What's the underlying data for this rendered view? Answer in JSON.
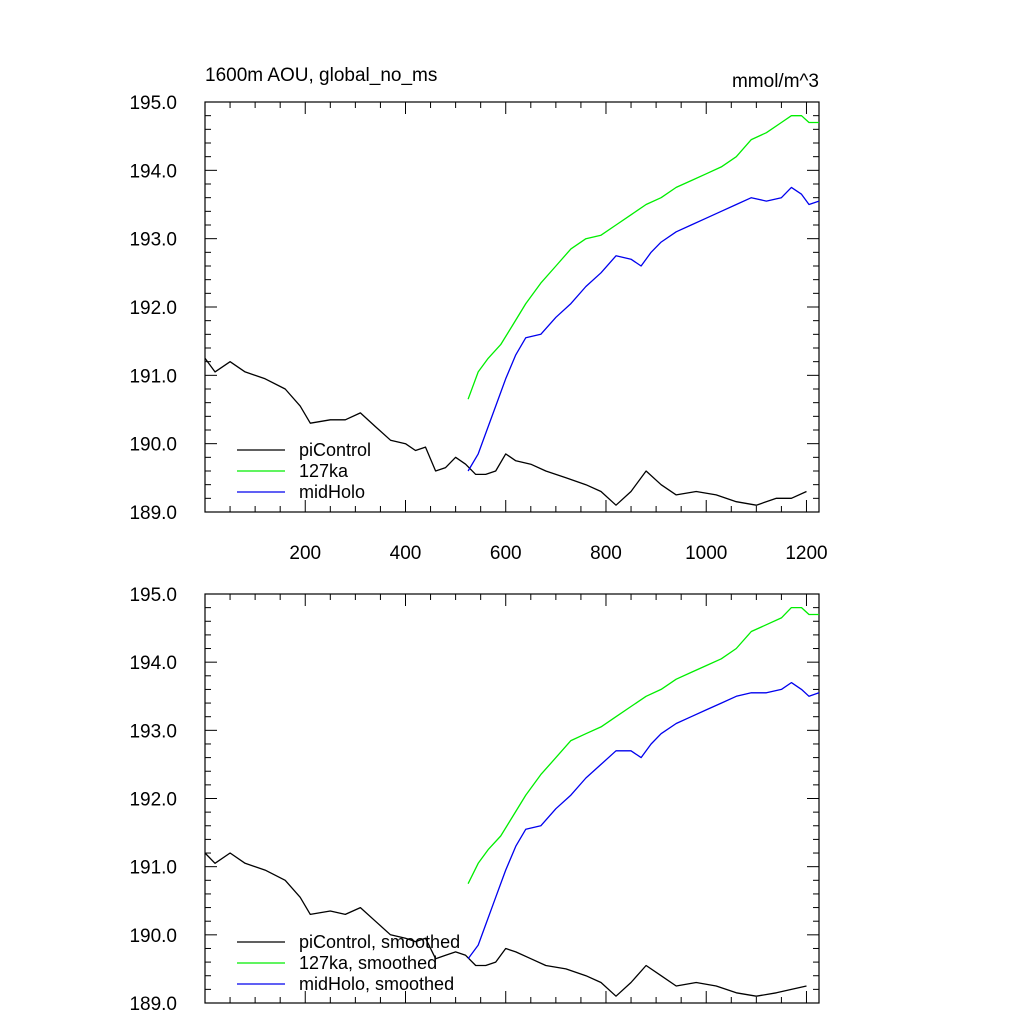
{
  "figure": {
    "left_title": "1600m AOU, global_no_ms",
    "right_title": "mmol/m^3"
  },
  "chart_data": [
    {
      "type": "line",
      "panel": "top",
      "title": "1600m AOU, global_no_ms",
      "units": "mmol/m^3",
      "xlabel": "",
      "ylabel": "",
      "xlim": [
        0,
        1225
      ],
      "ylim": [
        189.0,
        195.0
      ],
      "x_ticks": [
        200,
        400,
        600,
        800,
        1000,
        1200
      ],
      "x_tick_labels": [
        "200",
        "400",
        "600",
        "800",
        "1000",
        "1200"
      ],
      "y_ticks": [
        189.0,
        190.0,
        191.0,
        192.0,
        193.0,
        194.0,
        195.0
      ],
      "y_tick_labels": [
        "189.0",
        "190.0",
        "191.0",
        "192.0",
        "193.0",
        "194.0",
        "195.0"
      ],
      "legend_position": "bottom-left",
      "grid": false,
      "series": [
        {
          "name": "piControl",
          "color": "#000000",
          "x": [
            0,
            20,
            50,
            80,
            120,
            160,
            190,
            210,
            250,
            280,
            310,
            340,
            370,
            400,
            420,
            440,
            460,
            480,
            500,
            520,
            540,
            560,
            580,
            600,
            620,
            650,
            680,
            720,
            760,
            790,
            820,
            850,
            880,
            910,
            940,
            980,
            1020,
            1060,
            1100,
            1140,
            1170,
            1200
          ],
          "y": [
            191.25,
            191.05,
            191.2,
            191.05,
            190.95,
            190.8,
            190.55,
            190.3,
            190.35,
            190.35,
            190.45,
            190.25,
            190.05,
            190.0,
            189.9,
            189.95,
            189.6,
            189.65,
            189.8,
            189.7,
            189.55,
            189.55,
            189.6,
            189.85,
            189.75,
            189.7,
            189.6,
            189.5,
            189.4,
            189.3,
            189.1,
            189.3,
            189.6,
            189.4,
            189.25,
            189.3,
            189.25,
            189.15,
            189.1,
            189.2,
            189.2,
            189.3
          ]
        },
        {
          "name": "127ka",
          "color": "#00ee00",
          "x": [
            525,
            545,
            565,
            590,
            615,
            640,
            670,
            700,
            730,
            760,
            790,
            820,
            850,
            880,
            910,
            940,
            970,
            1000,
            1030,
            1060,
            1090,
            1120,
            1150,
            1170,
            1190,
            1205,
            1225
          ],
          "y": [
            190.65,
            191.05,
            191.25,
            191.45,
            191.75,
            192.05,
            192.35,
            192.6,
            192.85,
            193.0,
            193.05,
            193.2,
            193.35,
            193.5,
            193.6,
            193.75,
            193.85,
            193.95,
            194.05,
            194.2,
            194.45,
            194.55,
            194.7,
            194.8,
            194.8,
            194.7,
            194.7
          ]
        },
        {
          "name": "midHolo",
          "color": "#0000ee",
          "x": [
            525,
            545,
            560,
            580,
            600,
            620,
            640,
            670,
            700,
            730,
            760,
            790,
            820,
            850,
            870,
            890,
            910,
            940,
            970,
            1000,
            1030,
            1060,
            1090,
            1120,
            1150,
            1170,
            1190,
            1205,
            1225
          ],
          "y": [
            189.6,
            189.85,
            190.15,
            190.55,
            190.95,
            191.3,
            191.55,
            191.6,
            191.85,
            192.05,
            192.3,
            192.5,
            192.75,
            192.7,
            192.6,
            192.8,
            192.95,
            193.1,
            193.2,
            193.3,
            193.4,
            193.5,
            193.6,
            193.55,
            193.6,
            193.75,
            193.65,
            193.5,
            193.55
          ]
        }
      ]
    },
    {
      "type": "line",
      "panel": "bottom",
      "xlabel": "",
      "ylabel": "",
      "xlim": [
        0,
        1225
      ],
      "ylim": [
        189.0,
        195.0
      ],
      "x_ticks": [
        200,
        400,
        600,
        800,
        1000,
        1200
      ],
      "y_ticks": [
        189.0,
        190.0,
        191.0,
        192.0,
        193.0,
        194.0,
        195.0
      ],
      "y_tick_labels": [
        "189.0",
        "190.0",
        "191.0",
        "192.0",
        "193.0",
        "194.0",
        "195.0"
      ],
      "legend_position": "bottom-left",
      "grid": false,
      "series": [
        {
          "name": "piControl, smoothed",
          "color": "#000000",
          "x": [
            0,
            20,
            50,
            80,
            120,
            160,
            190,
            210,
            250,
            280,
            310,
            340,
            370,
            400,
            420,
            440,
            460,
            480,
            500,
            520,
            540,
            560,
            580,
            600,
            620,
            650,
            680,
            720,
            760,
            790,
            820,
            850,
            880,
            910,
            940,
            980,
            1020,
            1060,
            1100,
            1140,
            1170,
            1200
          ],
          "y": [
            191.2,
            191.05,
            191.2,
            191.05,
            190.95,
            190.8,
            190.55,
            190.3,
            190.35,
            190.3,
            190.4,
            190.2,
            190.0,
            189.95,
            189.9,
            189.95,
            189.65,
            189.7,
            189.75,
            189.7,
            189.55,
            189.55,
            189.6,
            189.8,
            189.75,
            189.65,
            189.55,
            189.5,
            189.4,
            189.3,
            189.1,
            189.3,
            189.55,
            189.4,
            189.25,
            189.3,
            189.25,
            189.15,
            189.1,
            189.15,
            189.2,
            189.25
          ]
        },
        {
          "name": "127ka, smoothed",
          "color": "#00ee00",
          "x": [
            525,
            545,
            565,
            590,
            615,
            640,
            670,
            700,
            730,
            760,
            790,
            820,
            850,
            880,
            910,
            940,
            970,
            1000,
            1030,
            1060,
            1090,
            1120,
            1150,
            1170,
            1190,
            1205,
            1225
          ],
          "y": [
            190.75,
            191.05,
            191.25,
            191.45,
            191.75,
            192.05,
            192.35,
            192.6,
            192.85,
            192.95,
            193.05,
            193.2,
            193.35,
            193.5,
            193.6,
            193.75,
            193.85,
            193.95,
            194.05,
            194.2,
            194.45,
            194.55,
            194.65,
            194.8,
            194.8,
            194.7,
            194.7
          ]
        },
        {
          "name": "midHolo, smoothed",
          "color": "#0000ee",
          "x": [
            525,
            545,
            560,
            580,
            600,
            620,
            640,
            670,
            700,
            730,
            760,
            790,
            820,
            850,
            870,
            890,
            910,
            940,
            970,
            1000,
            1030,
            1060,
            1090,
            1120,
            1150,
            1170,
            1190,
            1205,
            1225
          ],
          "y": [
            189.65,
            189.85,
            190.15,
            190.55,
            190.95,
            191.3,
            191.55,
            191.6,
            191.85,
            192.05,
            192.3,
            192.5,
            192.7,
            192.7,
            192.6,
            192.8,
            192.95,
            193.1,
            193.2,
            193.3,
            193.4,
            193.5,
            193.55,
            193.55,
            193.6,
            193.7,
            193.6,
            193.5,
            193.55
          ]
        }
      ]
    }
  ]
}
